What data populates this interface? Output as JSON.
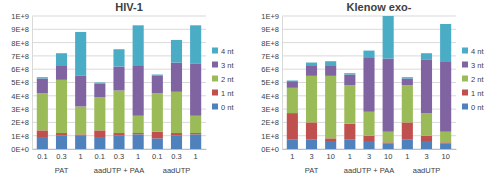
{
  "chart_data": [
    {
      "type": "bar",
      "title": "HIV-1",
      "stacked": true,
      "grid": true,
      "legend": "right",
      "categories": [
        "0.1",
        "0.3",
        "1",
        "0.1",
        "0.3",
        "1",
        "0.1",
        "0.3",
        "1"
      ],
      "group_labels": [
        "PAT",
        "aadUTP + PAA",
        "aadUTP"
      ],
      "ylim": [
        0,
        1000000000
      ],
      "yticks": [
        {
          "value": 0,
          "label": "0E+0"
        },
        {
          "value": 100000000,
          "label": "1E+8"
        },
        {
          "value": 200000000,
          "label": "2E+8"
        },
        {
          "value": 300000000,
          "label": "3E+8"
        },
        {
          "value": 400000000,
          "label": "4E+8"
        },
        {
          "value": 500000000,
          "label": "5E+8"
        },
        {
          "value": 600000000,
          "label": "6E+8"
        },
        {
          "value": 700000000,
          "label": "7E+8"
        },
        {
          "value": 800000000,
          "label": "8E+8"
        },
        {
          "value": 900000000,
          "label": "9E+8"
        },
        {
          "value": 1000000000,
          "label": "1E+9"
        }
      ],
      "series": [
        {
          "name": "0 nt",
          "color": "#4f81bd",
          "values": [
            90000000,
            100000000,
            100000000,
            90000000,
            100000000,
            110000000,
            80000000,
            100000000,
            110000000
          ]
        },
        {
          "name": "1 nt",
          "color": "#c0504d",
          "values": [
            50000000,
            20000000,
            10000000,
            50000000,
            20000000,
            10000000,
            50000000,
            20000000,
            10000000
          ]
        },
        {
          "name": "2 nt",
          "color": "#9bbb59",
          "values": [
            280000000,
            400000000,
            210000000,
            250000000,
            320000000,
            130000000,
            290000000,
            310000000,
            130000000
          ]
        },
        {
          "name": "3 nt",
          "color": "#8064a2",
          "values": [
            110000000,
            110000000,
            230000000,
            100000000,
            180000000,
            380000000,
            130000000,
            220000000,
            390000000
          ]
        },
        {
          "name": "4 nt",
          "color": "#4bacc6",
          "values": [
            10000000,
            90000000,
            330000000,
            10000000,
            130000000,
            300000000,
            10000000,
            170000000,
            290000000
          ]
        }
      ]
    },
    {
      "type": "bar",
      "title": "Klenow exo-",
      "stacked": true,
      "grid": true,
      "legend": "right",
      "categories": [
        "1",
        "3",
        "10",
        "1",
        "3",
        "10",
        "1",
        "3",
        "10"
      ],
      "group_labels": [
        "PAT",
        "aadUTP + PAA",
        "aadUTP"
      ],
      "ylim": [
        0,
        1000000000
      ],
      "yticks": [
        {
          "value": 0,
          "label": "0E+0"
        },
        {
          "value": 100000000,
          "label": "1E+8"
        },
        {
          "value": 200000000,
          "label": "2E+8"
        },
        {
          "value": 300000000,
          "label": "3E+8"
        },
        {
          "value": 400000000,
          "label": "4E+8"
        },
        {
          "value": 500000000,
          "label": "5E+8"
        },
        {
          "value": 600000000,
          "label": "6E+8"
        },
        {
          "value": 700000000,
          "label": "7E+8"
        },
        {
          "value": 800000000,
          "label": "8E+8"
        },
        {
          "value": 900000000,
          "label": "9E+8"
        },
        {
          "value": 1000000000,
          "label": "1E+9"
        }
      ],
      "series": [
        {
          "name": "0 nt",
          "color": "#4f81bd",
          "values": [
            70000000,
            70000000,
            60000000,
            70000000,
            60000000,
            40000000,
            70000000,
            60000000,
            40000000
          ]
        },
        {
          "name": "1 nt",
          "color": "#c0504d",
          "values": [
            200000000,
            130000000,
            20000000,
            120000000,
            40000000,
            10000000,
            130000000,
            40000000,
            10000000
          ]
        },
        {
          "name": "2 nt",
          "color": "#9bbb59",
          "values": [
            190000000,
            350000000,
            470000000,
            290000000,
            180000000,
            80000000,
            280000000,
            170000000,
            80000000
          ]
        },
        {
          "name": "3 nt",
          "color": "#8064a2",
          "values": [
            50000000,
            80000000,
            80000000,
            80000000,
            410000000,
            550000000,
            50000000,
            400000000,
            530000000
          ]
        },
        {
          "name": "4 nt",
          "color": "#4bacc6",
          "values": [
            5000000,
            20000000,
            30000000,
            10000000,
            50000000,
            320000000,
            10000000,
            50000000,
            280000000
          ]
        }
      ]
    }
  ]
}
